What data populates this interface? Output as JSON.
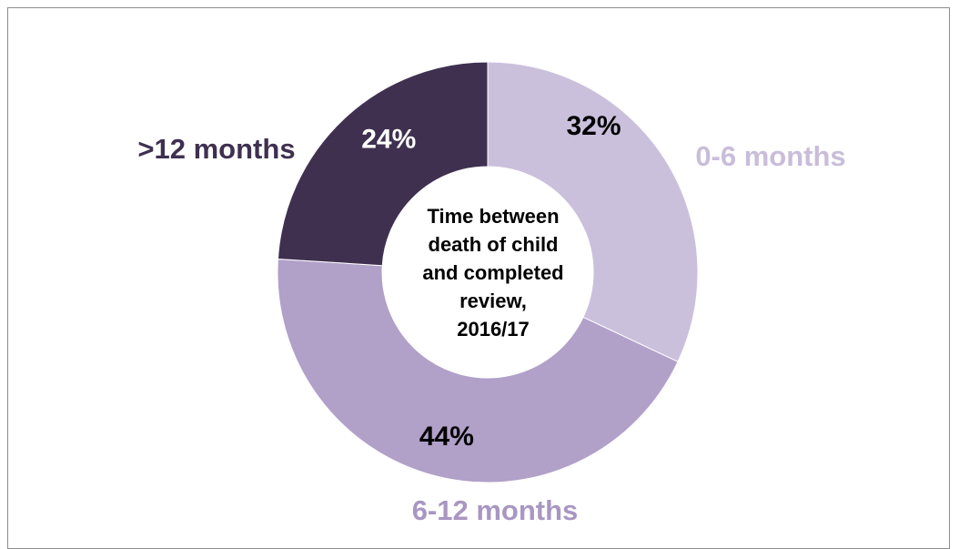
{
  "chart_data": {
    "type": "pie",
    "variant": "donut",
    "title": "Time between death of child and completed review, 2016/17",
    "start_angle_deg": 0,
    "direction": "clockwise",
    "slices": [
      {
        "label": "0-6 months",
        "value": 32,
        "display": "32%",
        "color": "#cbc0dc",
        "label_color": "#c9bdda",
        "value_color": "#000000"
      },
      {
        "label": "6-12 months",
        "value": 44,
        "display": "44%",
        "color": "#b1a0c8",
        "label_color": "#a996c2",
        "value_color": "#000000"
      },
      {
        "label": ">12 months",
        "value": 24,
        "display": "24%",
        "color": "#3f3050",
        "label_color": "#3f3050",
        "value_color": "#ffffff"
      }
    ],
    "legend": "none"
  }
}
